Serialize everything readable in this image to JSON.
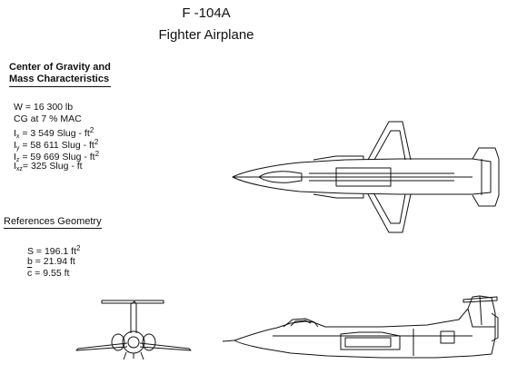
{
  "title": "F -104A",
  "subtitle": "Fighter Airplane",
  "mass": {
    "header_line1": "Center of Gravity and",
    "header_line2": "Mass Characteristics",
    "weight": "W = 16 300  lb",
    "cg": "CG at 7 % MAC",
    "ix_sym": "I",
    "ix_sub": "x",
    "ix_val": " = 3 549  Slug - ft",
    "iy_sym": "I",
    "iy_sub": "y",
    "iy_val": " = 58 611 Slug - ft",
    "iz_sym": "I",
    "iz_sub": "z",
    "iz_val": " = 59 669 Slug - ft",
    "ixz_sym": "I",
    "ixz_sub": "xz",
    "ixz_val": "= 325 Slug - ft",
    "exp": "2"
  },
  "geometry": {
    "header": "References Geometry",
    "s_val": "S = 196.1  ft",
    "s_exp": "2",
    "b_val": "b = 21.94  ft",
    "c_sym": "c",
    "c_val": " = 9.55  ft"
  }
}
